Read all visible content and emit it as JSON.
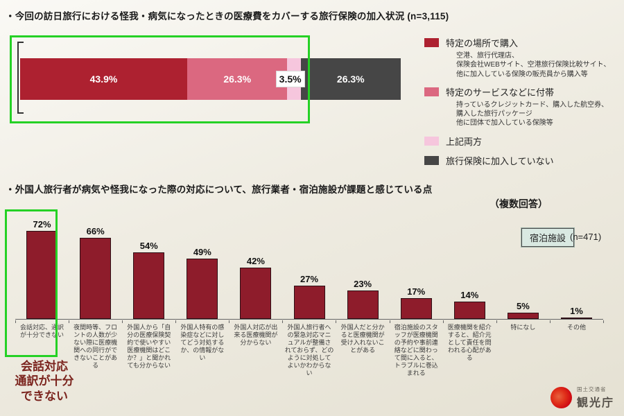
{
  "slide": {
    "title1": "・今回の訪日旅行における怪我・病気になったときの医療費をカバーする旅行保険の加入状況 (n=3,115)",
    "title2": "・外国人旅行者が病気や怪我になった際の対応について、旅行業者・宿泊施設が課題と感じている点",
    "note2": "（複数回答）",
    "survey_legend_label": "宿泊施設",
    "survey_n": "(n=471)",
    "annotation": "会話対応\n通訳が十分\nできない",
    "logo": {
      "ministry": "国土交通省",
      "agency": "観光庁"
    }
  },
  "chart_data": [
    {
      "type": "bar",
      "variant": "horizontal-100pct-stacked",
      "title": "今回の訪日旅行における怪我・病気になったときの医療費をカバーする旅行保険の加入状況",
      "n": "n=3,115",
      "segments": [
        {
          "name": "特定の場所で購入",
          "value": 43.9,
          "label": "43.9%",
          "color": "#ad2130",
          "label_color": "#ffffff",
          "description": "空港、旅行代理店、\n保険会社WEBサイト、空港旅行保険比較サイト、\n他に加入している保険の販売員から購入等"
        },
        {
          "name": "特定のサービスなどに付帯",
          "value": 26.3,
          "label": "26.3%",
          "color": "#db6880",
          "label_color": "#ffffff",
          "description": "持っているクレジットカード、購入した航空券、\n購入した旅行パッケージ\n他に団体で加入している保険等"
        },
        {
          "name": "上記両方",
          "value": 3.5,
          "label": "3.5%",
          "color": "#f6c6dd",
          "label_color": "#111111",
          "description": ""
        },
        {
          "name": "旅行保険に加入していない",
          "value": 26.3,
          "label": "26.3%",
          "color": "#464646",
          "label_color": "#ffffff",
          "description": ""
        }
      ],
      "xlim": [
        0,
        100
      ],
      "legend_position": "right"
    },
    {
      "type": "bar",
      "title": "外国人旅行者が病気や怪我になった際の対応について、旅行業者・宿泊施設が課題と感じている点（複数回答）",
      "series_name": "宿泊施設",
      "n": "n=471",
      "categories": [
        "会話対応、通訳が十分できない",
        "夜間時等、フロントの人数が少ない際に医療機関への同行ができないことがある",
        "外国人から「自分の医療保険契約で使いやすい医療機関はどこか？」と聞かれても分からない",
        "外国人特有の感染症などに対してどう対処するか、の情報がない",
        "外国人対応が出来る医療機関が分からない",
        "外国人旅行者への緊急対応マニュアルが整備されておらず、どのように対処してよいかわからない",
        "外国人だと分かると医療機関が受け入れないことがある",
        "宿泊施設のスタッフが医療機関の予約や事前連絡などに関わって間に入ると、トラブルに巻込まれる",
        "医療機関を紹介すると、紹介元として責任を問われる心配がある",
        "特になし",
        "その他"
      ],
      "values": [
        72,
        66,
        54,
        49,
        42,
        27,
        23,
        17,
        14,
        5,
        1
      ],
      "value_labels": [
        "72%",
        "66%",
        "54%",
        "49%",
        "42%",
        "27%",
        "23%",
        "17%",
        "14%",
        "5%",
        "1%"
      ],
      "ylim": [
        0,
        80
      ],
      "grid": false,
      "bar_color": "#8e1c2b",
      "highlight": {
        "category_index": 0,
        "annotation": "会話対応\n通訳が十分\nできない"
      }
    }
  ]
}
